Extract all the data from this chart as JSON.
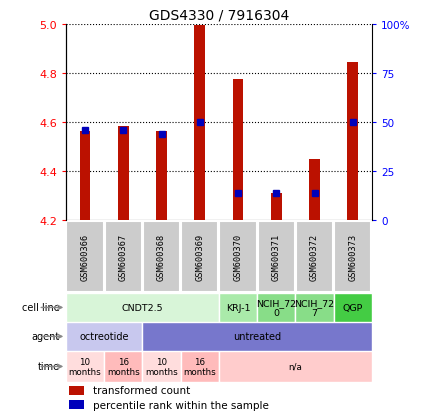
{
  "title": "GDS4330 / 7916304",
  "samples": [
    "GSM600366",
    "GSM600367",
    "GSM600368",
    "GSM600369",
    "GSM600370",
    "GSM600371",
    "GSM600372",
    "GSM600373"
  ],
  "bar_values": [
    4.565,
    4.585,
    4.565,
    4.995,
    4.775,
    4.31,
    4.45,
    4.845
  ],
  "bar_bottom": 4.2,
  "percentile_values": [
    46,
    46,
    44,
    50,
    14,
    14,
    14,
    50
  ],
  "ylim": [
    4.2,
    5.0
  ],
  "yticks": [
    4.2,
    4.4,
    4.6,
    4.8,
    5.0
  ],
  "right_ylim": [
    0,
    100
  ],
  "right_yticks": [
    0,
    25,
    50,
    75,
    100
  ],
  "right_yticklabels": [
    "0",
    "25",
    "50",
    "75",
    "100%"
  ],
  "bar_color": "#bb1100",
  "percentile_color": "#0000bb",
  "cell_line_data": [
    {
      "label": "CNDT2.5",
      "start": 0,
      "end": 4,
      "color": "#d8f5d8"
    },
    {
      "label": "KRJ-1",
      "start": 4,
      "end": 5,
      "color": "#aaeaaa"
    },
    {
      "label": "NCIH_72\n0",
      "start": 5,
      "end": 6,
      "color": "#88dd88"
    },
    {
      "label": "NCIH_72\n7",
      "start": 6,
      "end": 7,
      "color": "#88dd88"
    },
    {
      "label": "QGP",
      "start": 7,
      "end": 8,
      "color": "#44cc44"
    }
  ],
  "agent_data": [
    {
      "label": "octreotide",
      "start": 0,
      "end": 2,
      "color": "#c8c8ee"
    },
    {
      "label": "untreated",
      "start": 2,
      "end": 8,
      "color": "#7777cc"
    }
  ],
  "time_data": [
    {
      "label": "10\nmonths",
      "start": 0,
      "end": 1,
      "color": "#ffdddd"
    },
    {
      "label": "16\nmonths",
      "start": 1,
      "end": 2,
      "color": "#ffbbbb"
    },
    {
      "label": "10\nmonths",
      "start": 2,
      "end": 3,
      "color": "#ffdddd"
    },
    {
      "label": "16\nmonths",
      "start": 3,
      "end": 4,
      "color": "#ffbbbb"
    },
    {
      "label": "n/a",
      "start": 4,
      "end": 8,
      "color": "#ffcccc"
    }
  ],
  "row_labels": [
    "cell line",
    "agent",
    "time"
  ],
  "legend_items": [
    {
      "label": "transformed count",
      "color": "#bb1100"
    },
    {
      "label": "percentile rank within the sample",
      "color": "#0000bb"
    }
  ],
  "sample_box_color": "#cccccc",
  "fig_bg": "#ffffff"
}
